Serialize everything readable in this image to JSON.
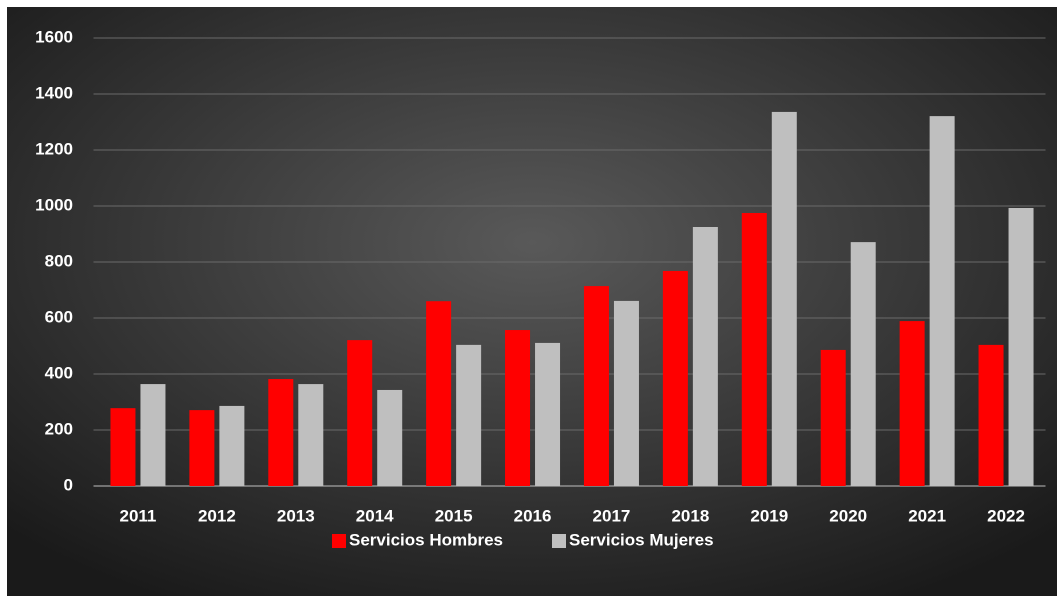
{
  "chart_data": {
    "type": "bar",
    "categories": [
      "2011",
      "2012",
      "2013",
      "2014",
      "2015",
      "2016",
      "2017",
      "2018",
      "2019",
      "2020",
      "2021",
      "2022"
    ],
    "series": [
      {
        "name": "Servicios Hombres",
        "color": "#ff0000",
        "values": [
          278,
          271,
          382,
          521,
          660,
          557,
          714,
          768,
          975,
          486,
          589,
          504
        ]
      },
      {
        "name": "Servicios Mujeres",
        "color": "#bfbfbf",
        "values": [
          364,
          286,
          364,
          343,
          504,
          511,
          661,
          925,
          1336,
          871,
          1321,
          993
        ]
      }
    ],
    "ylim": [
      0,
      1600
    ],
    "yticks": [
      0,
      200,
      400,
      600,
      800,
      1000,
      1200,
      1400,
      1600
    ],
    "grid": true,
    "legend": "bottom"
  }
}
